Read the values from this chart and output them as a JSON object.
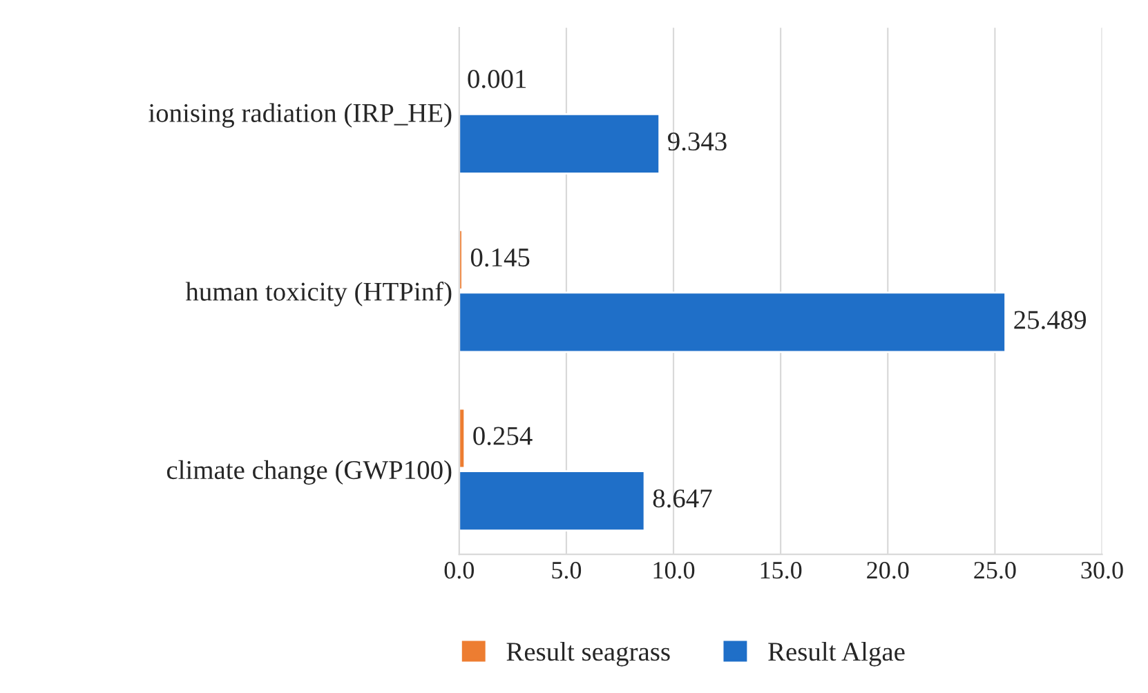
{
  "chart_data": {
    "type": "bar",
    "orientation": "horizontal",
    "categories": [
      "ionising radiation (IRP_HE)",
      "human toxicity (HTPinf)",
      "climate change (GWP100)"
    ],
    "series": [
      {
        "name": "Result seagrass",
        "color": "#ed7d31",
        "values": [
          0.001,
          0.145,
          0.254
        ]
      },
      {
        "name": "Result Algae",
        "color": "#1f6fc8",
        "values": [
          9.343,
          25.489,
          8.647
        ]
      }
    ],
    "xlim": [
      0,
      30
    ],
    "xticks": [
      {
        "value": 0,
        "label": "0.0"
      },
      {
        "value": 5,
        "label": "5.0"
      },
      {
        "value": 10,
        "label": "10.0"
      },
      {
        "value": 15,
        "label": "15.0"
      },
      {
        "value": 20,
        "label": "20.0"
      },
      {
        "value": 25,
        "label": "25.0"
      },
      {
        "value": 30,
        "label": "30.0"
      }
    ],
    "grid": "x",
    "legend": "bottom",
    "data_labels": true
  }
}
